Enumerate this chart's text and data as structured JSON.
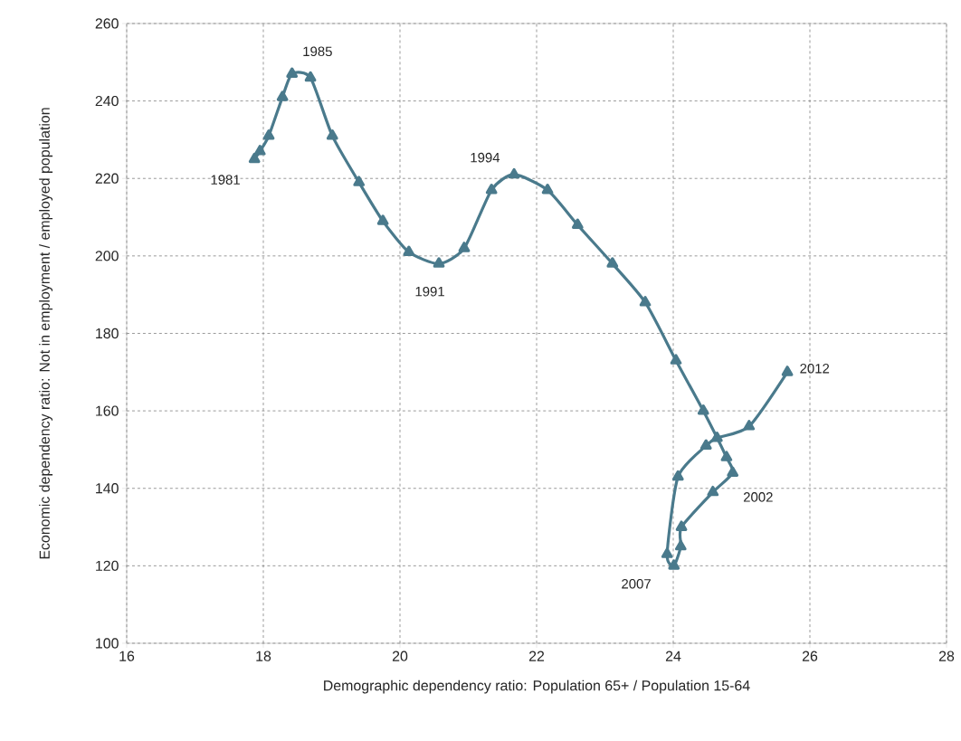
{
  "chart_data": {
    "type": "line",
    "xlabel": "Demographic dependency ratio: Population 65+ / Population 15-64",
    "ylabel": "Economic dependency ratio: Not in employment / employed population",
    "xlim": [
      16,
      28
    ],
    "xticks": [
      16,
      18,
      20,
      22,
      24,
      26,
      28
    ],
    "ylim": [
      100,
      260
    ],
    "yticks": [
      100,
      120,
      140,
      160,
      180,
      200,
      220,
      240,
      260
    ],
    "grid": true,
    "marker": "triangle",
    "line_style": "solid",
    "series": [
      {
        "color": "#4a7a8c",
        "x": [
          17.87,
          17.95,
          18.08,
          18.28,
          18.42,
          18.69,
          19.01,
          19.4,
          19.75,
          20.13,
          20.57,
          20.94,
          21.34,
          21.67,
          22.16,
          22.6,
          23.11,
          23.59,
          24.04,
          24.44,
          24.78,
          24.87,
          24.58,
          24.12,
          24.11,
          24.01,
          23.91,
          24.07,
          24.48,
          24.64,
          25.11,
          25.67
        ],
        "values": [
          225,
          227,
          231,
          241,
          247,
          246,
          231,
          219,
          209,
          201,
          198,
          202,
          217,
          221,
          217,
          208,
          198,
          188,
          173,
          160,
          148,
          144,
          139,
          130,
          125,
          120,
          123,
          143,
          151,
          153,
          156,
          170
        ]
      }
    ],
    "annotations": [
      {
        "text": "1981",
        "x": 17.87,
        "y": 225
      },
      {
        "text": "1985",
        "x": 18.42,
        "y": 247
      },
      {
        "text": "1991",
        "x": 20.57,
        "y": 198
      },
      {
        "text": "1994",
        "x": 21.67,
        "y": 221
      },
      {
        "text": "2002",
        "x": 24.87,
        "y": 144
      },
      {
        "text": "2007",
        "x": 23.91,
        "y": 123
      },
      {
        "text": "2012",
        "x": 25.67,
        "y": 170
      }
    ]
  }
}
